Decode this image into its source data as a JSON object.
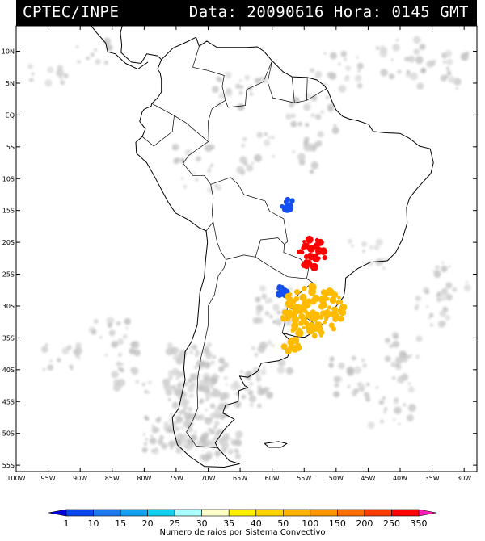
{
  "header": {
    "agency": "CPTEC/INPE",
    "datetime": "Data: 20090616 Hora: 0145 GMT"
  },
  "map": {
    "lon_range": [
      -100,
      -28
    ],
    "lat_range": [
      -56,
      14
    ],
    "lat_ticks": [
      {
        "lat": 10,
        "label": "10N"
      },
      {
        "lat": 5,
        "label": "5N"
      },
      {
        "lat": 0,
        "label": "EQ"
      },
      {
        "lat": -5,
        "label": "5S"
      },
      {
        "lat": -10,
        "label": "10S"
      },
      {
        "lat": -15,
        "label": "15S"
      },
      {
        "lat": -20,
        "label": "20S"
      },
      {
        "lat": -25,
        "label": "25S"
      },
      {
        "lat": -30,
        "label": "30S"
      },
      {
        "lat": -35,
        "label": "35S"
      },
      {
        "lat": -40,
        "label": "40S"
      },
      {
        "lat": -45,
        "label": "45S"
      },
      {
        "lat": -50,
        "label": "50S"
      },
      {
        "lat": -55,
        "label": "55S"
      }
    ],
    "lon_ticks": [
      {
        "lon": -100,
        "label": "100W"
      },
      {
        "lon": -95,
        "label": "95W"
      },
      {
        "lon": -90,
        "label": "90W"
      },
      {
        "lon": -85,
        "label": "85W"
      },
      {
        "lon": -80,
        "label": "80W"
      },
      {
        "lon": -75,
        "label": "75W"
      },
      {
        "lon": -70,
        "label": "70W"
      },
      {
        "lon": -65,
        "label": "65W"
      },
      {
        "lon": -60,
        "label": "60W"
      },
      {
        "lon": -55,
        "label": "55W"
      },
      {
        "lon": -50,
        "label": "50W"
      },
      {
        "lon": -45,
        "label": "45W"
      },
      {
        "lon": -40,
        "label": "40W"
      },
      {
        "lon": -35,
        "label": "35W"
      },
      {
        "lon": -30,
        "label": "30W"
      }
    ],
    "colors": {
      "cloud": "#c8c8c8",
      "coast": "#000000"
    }
  },
  "systems": [
    {
      "id": "central-brazil",
      "count_range": "1-10",
      "color": "#1450f0",
      "center": [
        -57.5,
        -13.9
      ],
      "spread": [
        1.2,
        0.9
      ]
    },
    {
      "id": "sao-paulo-parana",
      "count_range": "250-350",
      "color": "#ff0000",
      "center": [
        -53.8,
        -21.8
      ],
      "spread": [
        2.2,
        2.4
      ]
    },
    {
      "id": "argentina-misiones",
      "count_range": "1-10",
      "color": "#1450f0",
      "center": [
        -58.4,
        -27.6
      ],
      "spread": [
        0.7,
        0.8
      ]
    },
    {
      "id": "rio-grande-do-sul",
      "count_range": "50-100",
      "color": "#ffbb00",
      "center": [
        -53.6,
        -30.8
      ],
      "spread": [
        5.0,
        4.0
      ]
    },
    {
      "id": "buenos-aires",
      "count_range": "50-100",
      "color": "#ffbb00",
      "center": [
        -56.6,
        -36.3
      ],
      "spread": [
        1.6,
        1.0
      ]
    }
  ],
  "legend": {
    "caption": "Numero de raios por Sistema Convectivo",
    "values": [
      "1",
      "10",
      "15",
      "20",
      "25",
      "30",
      "35",
      "40",
      "50",
      "100",
      "150",
      "200",
      "250",
      "350"
    ],
    "colors": [
      "#0000e0",
      "#0a46f0",
      "#1e78f0",
      "#14a0f0",
      "#10d2f0",
      "#aaffff",
      "#ffffc8",
      "#fff000",
      "#ffd400",
      "#ffb400",
      "#ff9600",
      "#ff6e00",
      "#ff3c00",
      "#ff0000",
      "#ff1eb4"
    ]
  }
}
